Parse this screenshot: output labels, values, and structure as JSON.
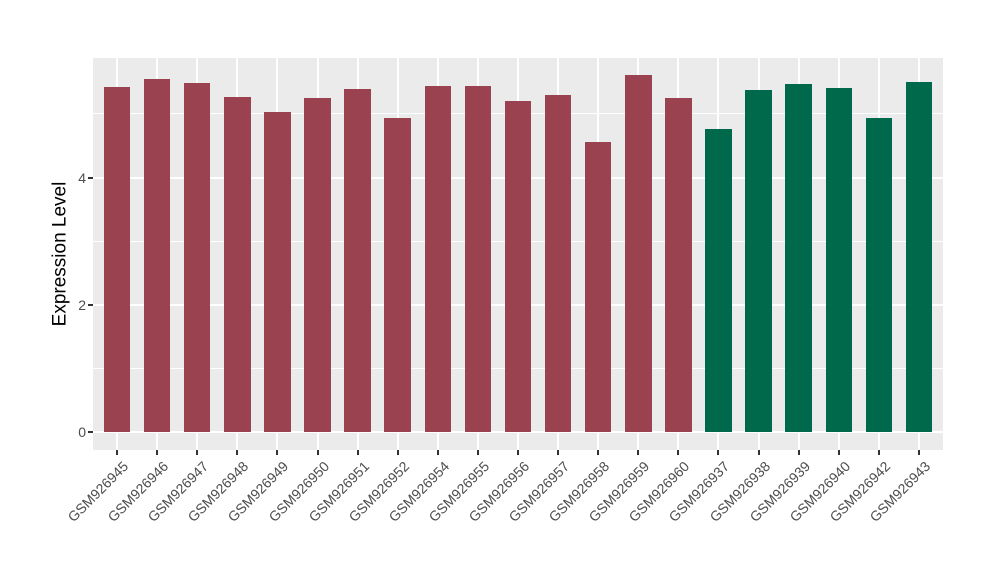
{
  "figure": {
    "background": "#FFFFFF",
    "panel_background": "#EBEBEB",
    "grid_color": "#FFFFFF",
    "tick_mark_color": "#333333",
    "axis_text_color": "#4D4D4D",
    "axis_title_color": "#000000"
  },
  "chart_data": {
    "type": "bar",
    "title": "",
    "xlabel": "",
    "ylabel": "Expression Level",
    "categories": [
      "GSM926945",
      "GSM926946",
      "GSM926947",
      "GSM926948",
      "GSM926949",
      "GSM926950",
      "GSM926951",
      "GSM926952",
      "GSM926954",
      "GSM926955",
      "GSM926956",
      "GSM926957",
      "GSM926958",
      "GSM926959",
      "GSM926960",
      "GSM926937",
      "GSM926938",
      "GSM926939",
      "GSM926940",
      "GSM926942",
      "GSM926943"
    ],
    "values": [
      5.42,
      5.54,
      5.48,
      5.27,
      5.03,
      5.25,
      5.39,
      4.94,
      5.43,
      5.44,
      5.2,
      5.29,
      4.55,
      5.61,
      5.24,
      4.76,
      5.38,
      5.46,
      5.4,
      4.93,
      5.5
    ],
    "group_of_bar": [
      0,
      0,
      0,
      0,
      0,
      0,
      0,
      0,
      0,
      0,
      0,
      0,
      0,
      0,
      0,
      1,
      1,
      1,
      1,
      1,
      1
    ],
    "group_colors": [
      "#9A4250",
      "#00684B"
    ],
    "yticks": [
      0,
      2,
      4
    ],
    "minor_yticks": [
      1,
      3,
      5
    ],
    "ylim": [
      -0.275,
      5.875
    ],
    "bar_width_fraction": 0.66,
    "grid": true,
    "legend": "none",
    "x_label_angle_deg": 45
  }
}
